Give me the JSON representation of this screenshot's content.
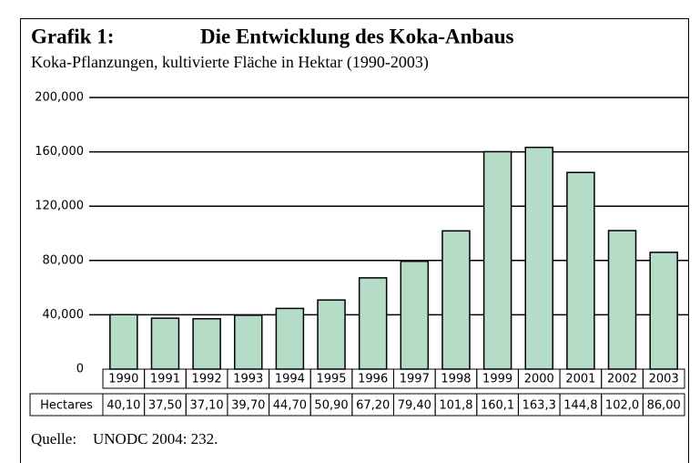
{
  "chart_data": {
    "type": "bar",
    "title_label": "Grafik 1:",
    "title": "Die Entwicklung des Koka-Anbaus",
    "subtitle": "Koka-Pflanzungen, kultivierte Fläche in Hektar (1990-2003)",
    "categories": [
      "1990",
      "1991",
      "1992",
      "1993",
      "1994",
      "1995",
      "1996",
      "1997",
      "1998",
      "1999",
      "2000",
      "2001",
      "2002",
      "2003"
    ],
    "row_label": "Hectares",
    "values": [
      40100,
      37500,
      37100,
      39700,
      44700,
      50900,
      67200,
      79400,
      101800,
      160100,
      163300,
      144800,
      102000,
      86000
    ],
    "value_labels": [
      "40,10",
      "37,50",
      "37,10",
      "39,70",
      "44,70",
      "50,90",
      "67,20",
      "79,40",
      "101,8",
      "160,1",
      "163,3",
      "144,8",
      "102,0",
      "86,00"
    ],
    "color": "#b5dcc6",
    "ylim": [
      0,
      200000
    ],
    "yticks": [
      0,
      {
        "value": 40000,
        "label": "40,000"
      },
      {
        "value": 80000,
        "label": "80,000"
      },
      {
        "value": 120000,
        "label": "120,000"
      },
      {
        "value": 160000,
        "label": "160,000"
      },
      {
        "value": 200000,
        "label": "200,000"
      }
    ],
    "grid": true,
    "source_label": "Quelle:",
    "source": "UNODC 2004: 232."
  }
}
